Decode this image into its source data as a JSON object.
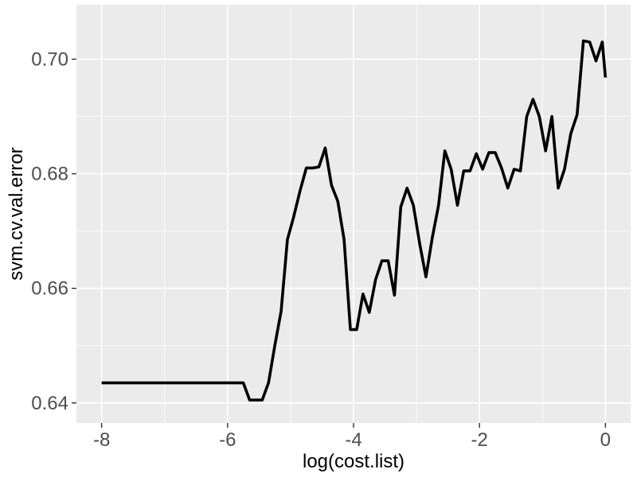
{
  "chart_data": {
    "type": "line",
    "title": "",
    "xlabel": "log(cost.list)",
    "ylabel": "svm.cv.val.error",
    "xlim": [
      -8.4,
      0.4
    ],
    "ylim": [
      0.6365,
      0.7095
    ],
    "x_ticks": [
      -8,
      -6,
      -4,
      -2,
      0
    ],
    "x_tick_labels": [
      "-8",
      "-6",
      "-4",
      "-2",
      "0"
    ],
    "y_ticks": [
      0.64,
      0.66,
      0.68,
      0.7
    ],
    "y_tick_labels": [
      "0.64",
      "0.66",
      "0.68",
      "0.70"
    ],
    "grid": true,
    "panel_color": "#ebebeb",
    "grid_color": "#ffffff",
    "line_color": "#000000",
    "series": [
      {
        "x": [
          -8.0,
          -7.0,
          -6.0,
          -5.75,
          -5.65,
          -5.55,
          -5.45,
          -5.35,
          -5.25,
          -5.15,
          -5.05,
          -4.95,
          -4.85,
          -4.75,
          -4.65,
          -4.55,
          -4.45,
          -4.35,
          -4.25,
          -4.15,
          -4.05,
          -3.95,
          -3.85,
          -3.75,
          -3.65,
          -3.55,
          -3.45,
          -3.35,
          -3.25,
          -3.15,
          -3.05,
          -2.95,
          -2.85,
          -2.75,
          -2.65,
          -2.55,
          -2.45,
          -2.35,
          -2.25,
          -2.15,
          -2.05,
          -1.95,
          -1.85,
          -1.75,
          -1.65,
          -1.55,
          -1.45,
          -1.35,
          -1.25,
          -1.15,
          -1.05,
          -0.95,
          -0.85,
          -0.75,
          -0.65,
          -0.55,
          -0.45,
          -0.35,
          -0.25,
          -0.15,
          -0.05,
          0.0
        ],
        "y": [
          0.6435,
          0.6435,
          0.6435,
          0.6435,
          0.6405,
          0.6405,
          0.6405,
          0.6435,
          0.65,
          0.656,
          0.6685,
          0.6725,
          0.677,
          0.681,
          0.681,
          0.6812,
          0.6845,
          0.678,
          0.6752,
          0.6685,
          0.6528,
          0.6528,
          0.659,
          0.6558,
          0.6615,
          0.6648,
          0.6648,
          0.6588,
          0.6742,
          0.6775,
          0.6745,
          0.6678,
          0.662,
          0.6688,
          0.6745,
          0.684,
          0.6808,
          0.6745,
          0.6805,
          0.6805,
          0.6835,
          0.6808,
          0.6837,
          0.6837,
          0.681,
          0.6775,
          0.6808,
          0.6805,
          0.69,
          0.693,
          0.69,
          0.684,
          0.69,
          0.6775,
          0.6808,
          0.687,
          0.6903,
          0.7032,
          0.703,
          0.6997,
          0.703,
          0.6968
        ]
      }
    ]
  }
}
